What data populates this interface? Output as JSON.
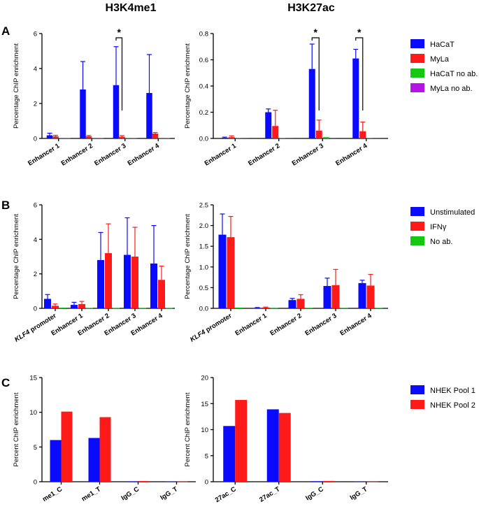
{
  "column_titles": [
    "H3K4me1",
    "H3K27ac"
  ],
  "panels": [
    {
      "letter": "A",
      "legend": [
        "HaCaT",
        "MyLa",
        "HaCaT no ab.",
        "MyLa no ab."
      ]
    },
    {
      "letter": "B",
      "legend": [
        "Unstimulated",
        "IFNγ",
        "No ab."
      ]
    },
    {
      "letter": "C",
      "legend": [
        "NHEK Pool 1",
        "NHEK Pool 2"
      ]
    }
  ],
  "colors": {
    "blue": "#0a0aff",
    "red": "#ff1a1a",
    "green": "#14c814",
    "purple": "#b414e6"
  },
  "chart_data": [
    {
      "id": "A-left",
      "type": "bar",
      "ylabel": "Percentage ChIP enrichment",
      "ylim": [
        0,
        6
      ],
      "yticks": [
        "0",
        "2",
        "4",
        "6"
      ],
      "categories": [
        "Enhancer 1",
        "Enhancer 2",
        "Enhancer 3",
        "Enhancer 4"
      ],
      "series": [
        {
          "name": "HaCaT",
          "color": "blue",
          "values": [
            0.18,
            2.8,
            3.05,
            2.6
          ],
          "errors": [
            0.12,
            1.6,
            2.2,
            2.2
          ]
        },
        {
          "name": "MyLa",
          "color": "red",
          "values": [
            0.12,
            0.12,
            0.1,
            0.28
          ],
          "errors": [
            0.06,
            0.05,
            0.06,
            0.06
          ]
        },
        {
          "name": "HaCaT no ab.",
          "color": "green",
          "values": [
            0.03,
            0.03,
            0.03,
            0.03
          ],
          "errors": [
            0,
            0,
            0,
            0
          ]
        },
        {
          "name": "MyLa no ab.",
          "color": "purple",
          "values": [
            0.02,
            0.02,
            0.02,
            0.02
          ],
          "errors": [
            0,
            0,
            0,
            0
          ]
        }
      ],
      "significance": [
        {
          "category": 2,
          "from": 0,
          "to": 1,
          "label": "*"
        }
      ]
    },
    {
      "id": "A-right",
      "type": "bar",
      "ylabel": "Percentage ChIP enrichment",
      "ylim": [
        0,
        0.8
      ],
      "yticks": [
        "0.0",
        "0.2",
        "0.4",
        "0.6",
        "0.8"
      ],
      "categories": [
        "Enhancer 1",
        "Enhancer 2",
        "Enhancer 3",
        "Enhancer 4"
      ],
      "series": [
        {
          "name": "HaCaT",
          "color": "blue",
          "values": [
            0.005,
            0.2,
            0.53,
            0.61
          ],
          "errors": [
            0.005,
            0.025,
            0.19,
            0.07
          ]
        },
        {
          "name": "MyLa",
          "color": "red",
          "values": [
            0.01,
            0.095,
            0.06,
            0.055
          ],
          "errors": [
            0.01,
            0.12,
            0.08,
            0.07
          ]
        },
        {
          "name": "HaCaT no ab.",
          "color": "green",
          "values": [
            0.004,
            0.004,
            0.01,
            0.004
          ],
          "errors": [
            0,
            0,
            0,
            0
          ]
        },
        {
          "name": "MyLa no ab.",
          "color": "purple",
          "values": [
            0.004,
            0.004,
            0.004,
            0.004
          ],
          "errors": [
            0,
            0,
            0,
            0
          ]
        }
      ],
      "significance": [
        {
          "category": 2,
          "from": 0,
          "to": 1,
          "label": "*"
        },
        {
          "category": 3,
          "from": 0,
          "to": 1,
          "label": "*"
        }
      ]
    },
    {
      "id": "B-left",
      "type": "bar",
      "ylabel": "Percentage ChIP enrichment",
      "ylim": [
        0,
        6
      ],
      "yticks": [
        "0",
        "2",
        "4",
        "6"
      ],
      "categories": [
        "KLF4 promoter",
        "Enhancer 1",
        "Enhancer 2",
        "Enhancer 3",
        "Enhancer 4"
      ],
      "italic_prefix": "KLF4",
      "series": [
        {
          "name": "Unstimulated",
          "color": "blue",
          "values": [
            0.55,
            0.2,
            2.8,
            3.1,
            2.6
          ],
          "errors": [
            0.25,
            0.15,
            1.6,
            2.15,
            2.2
          ]
        },
        {
          "name": "IFNγ",
          "color": "red",
          "values": [
            0.15,
            0.25,
            3.2,
            3.0,
            1.65
          ],
          "errors": [
            0.1,
            0.15,
            1.7,
            1.7,
            0.8
          ]
        },
        {
          "name": "No ab.",
          "color": "green",
          "values": [
            0.04,
            0.02,
            0.02,
            0.02,
            0.02
          ],
          "errors": [
            0,
            0,
            0,
            0,
            0
          ]
        }
      ]
    },
    {
      "id": "B-right",
      "type": "bar",
      "ylabel": "Percentage ChIP enrichment",
      "ylim": [
        0,
        2.5
      ],
      "yticks": [
        "0.0",
        "0.5",
        "1.0",
        "1.5",
        "2.0",
        "2.5"
      ],
      "categories": [
        "KLF4 promoter",
        "Enhancer 1",
        "Enhancer 2",
        "Enhancer 3",
        "Enhancer 4"
      ],
      "italic_prefix": "KLF4",
      "series": [
        {
          "name": "Unstimulated",
          "color": "blue",
          "values": [
            1.78,
            0.01,
            0.2,
            0.54,
            0.61
          ],
          "errors": [
            0.5,
            0.01,
            0.04,
            0.19,
            0.07
          ]
        },
        {
          "name": "IFNγ",
          "color": "red",
          "values": [
            1.72,
            0.02,
            0.23,
            0.56,
            0.55
          ],
          "errors": [
            0.5,
            0.01,
            0.1,
            0.38,
            0.27
          ]
        },
        {
          "name": "No ab.",
          "color": "green",
          "values": [
            0.02,
            0.01,
            0.01,
            0.01,
            0.01
          ],
          "errors": [
            0,
            0,
            0,
            0,
            0
          ]
        }
      ]
    },
    {
      "id": "C-left",
      "type": "bar",
      "ylabel": "Percent ChIP enrichment",
      "ylim": [
        0,
        15
      ],
      "yticks": [
        "0",
        "5",
        "10",
        "15"
      ],
      "categories": [
        "me1_C",
        "me1_T",
        "IgG_C",
        "IgG_T"
      ],
      "series": [
        {
          "name": "NHEK Pool 1",
          "color": "blue",
          "values": [
            6.0,
            6.3,
            0.06,
            0.03
          ],
          "errors": [
            0,
            0,
            0,
            0
          ]
        },
        {
          "name": "NHEK Pool 2",
          "color": "red",
          "values": [
            10.1,
            9.3,
            0.1,
            0.03
          ],
          "errors": [
            0,
            0,
            0,
            0
          ]
        }
      ]
    },
    {
      "id": "C-right",
      "type": "bar",
      "ylabel": "Percent ChIP enrichment",
      "ylim": [
        0,
        20
      ],
      "yticks": [
        "0",
        "5",
        "10",
        "15",
        "20"
      ],
      "categories": [
        "27ac_C",
        "27ac_T",
        "IgG_C",
        "IgG_T"
      ],
      "series": [
        {
          "name": "NHEK Pool 1",
          "color": "blue",
          "values": [
            10.7,
            13.9,
            0.1,
            0.03
          ],
          "errors": [
            0,
            0,
            0,
            0
          ]
        },
        {
          "name": "NHEK Pool 2",
          "color": "red",
          "values": [
            15.7,
            13.2,
            0.15,
            0.03
          ],
          "errors": [
            0,
            0,
            0,
            0
          ]
        }
      ]
    }
  ]
}
